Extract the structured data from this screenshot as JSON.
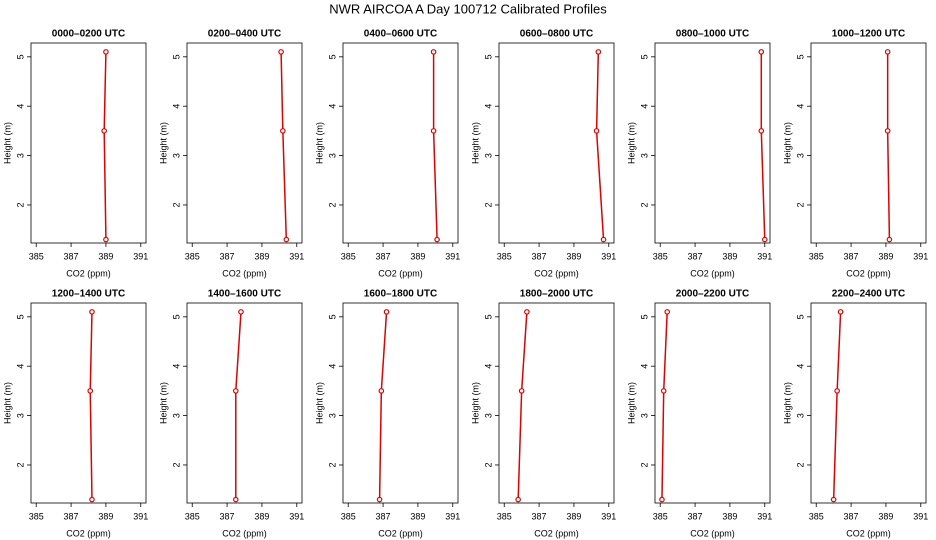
{
  "title": "NWR AIRCOA A  Day 100712  Calibrated Profiles",
  "chart_data": [
    {
      "type": "line",
      "title": "0000–0200 UTC",
      "x_label": "CO2 (ppm)",
      "y_label": "Height (m)",
      "color": "#e00000",
      "x": [
        389.0,
        388.9,
        389.0
      ],
      "values": [
        1.3,
        3.5,
        5.1
      ],
      "xlim": [
        384.7,
        391.3
      ],
      "ylim": [
        1.23,
        5.28
      ],
      "xticks": [
        385,
        387,
        389,
        391
      ],
      "yticks": [
        2,
        3,
        4,
        5
      ]
    },
    {
      "type": "line",
      "title": "0200–0400 UTC",
      "x_label": "CO2 (ppm)",
      "y_label": "Height (m)",
      "color": "#e00000",
      "x": [
        390.4,
        390.2,
        390.1
      ],
      "values": [
        1.3,
        3.5,
        5.1
      ],
      "xlim": [
        384.7,
        391.3
      ],
      "ylim": [
        1.23,
        5.28
      ],
      "xticks": [
        385,
        387,
        389,
        391
      ],
      "yticks": [
        2,
        3,
        4,
        5
      ]
    },
    {
      "type": "line",
      "title": "0400–0600 UTC",
      "x_label": "CO2 (ppm)",
      "y_label": "Height (m)",
      "color": "#e00000",
      "x": [
        390.1,
        389.9,
        389.9
      ],
      "values": [
        1.3,
        3.5,
        5.1
      ],
      "xlim": [
        384.7,
        391.3
      ],
      "ylim": [
        1.23,
        5.28
      ],
      "xticks": [
        385,
        387,
        389,
        391
      ],
      "yticks": [
        2,
        3,
        4,
        5
      ]
    },
    {
      "type": "line",
      "title": "0600–0800 UTC",
      "x_label": "CO2 (ppm)",
      "y_label": "Height (m)",
      "color": "#e00000",
      "x": [
        390.7,
        390.3,
        390.4
      ],
      "values": [
        1.3,
        3.5,
        5.1
      ],
      "xlim": [
        384.7,
        391.3
      ],
      "ylim": [
        1.23,
        5.28
      ],
      "xticks": [
        385,
        387,
        389,
        391
      ],
      "yticks": [
        2,
        3,
        4,
        5
      ]
    },
    {
      "type": "line",
      "title": "0800–1000 UTC",
      "x_label": "CO2 (ppm)",
      "y_label": "Height (m)",
      "color": "#e00000",
      "x": [
        391.0,
        390.8,
        390.8
      ],
      "values": [
        1.3,
        3.5,
        5.1
      ],
      "xlim": [
        384.7,
        391.3
      ],
      "ylim": [
        1.23,
        5.28
      ],
      "xticks": [
        385,
        387,
        389,
        391
      ],
      "yticks": [
        2,
        3,
        4,
        5
      ]
    },
    {
      "type": "line",
      "title": "1000–1200 UTC",
      "x_label": "CO2 (ppm)",
      "y_label": "Height (m)",
      "color": "#e00000",
      "x": [
        389.2,
        389.1,
        389.1
      ],
      "values": [
        1.3,
        3.5,
        5.1
      ],
      "xlim": [
        384.7,
        391.3
      ],
      "ylim": [
        1.23,
        5.28
      ],
      "xticks": [
        385,
        387,
        389,
        391
      ],
      "yticks": [
        2,
        3,
        4,
        5
      ]
    },
    {
      "type": "line",
      "title": "1200–1400 UTC",
      "x_label": "CO2 (ppm)",
      "y_label": "Height (m)",
      "color": "#e00000",
      "x": [
        388.2,
        388.1,
        388.2
      ],
      "values": [
        1.3,
        3.5,
        5.1
      ],
      "xlim": [
        384.7,
        391.3
      ],
      "ylim": [
        1.23,
        5.28
      ],
      "xticks": [
        385,
        387,
        389,
        391
      ],
      "yticks": [
        2,
        3,
        4,
        5
      ]
    },
    {
      "type": "line",
      "title": "1400–1600 UTC",
      "x_label": "CO2 (ppm)",
      "y_label": "Height (m)",
      "color": "#e00000",
      "x": [
        387.5,
        387.5,
        387.8
      ],
      "values": [
        1.3,
        3.5,
        5.1
      ],
      "xlim": [
        384.7,
        391.3
      ],
      "ylim": [
        1.23,
        5.28
      ],
      "xticks": [
        385,
        387,
        389,
        391
      ],
      "yticks": [
        2,
        3,
        4,
        5
      ]
    },
    {
      "type": "line",
      "title": "1600–1800 UTC",
      "x_label": "CO2 (ppm)",
      "y_label": "Height (m)",
      "color": "#e00000",
      "x": [
        386.8,
        386.9,
        387.2
      ],
      "values": [
        1.3,
        3.5,
        5.1
      ],
      "xlim": [
        384.7,
        391.3
      ],
      "ylim": [
        1.23,
        5.28
      ],
      "xticks": [
        385,
        387,
        389,
        391
      ],
      "yticks": [
        2,
        3,
        4,
        5
      ]
    },
    {
      "type": "line",
      "title": "1800–2000 UTC",
      "x_label": "CO2 (ppm)",
      "y_label": "Height (m)",
      "color": "#e00000",
      "x": [
        385.8,
        386.0,
        386.3
      ],
      "values": [
        1.3,
        3.5,
        5.1
      ],
      "xlim": [
        384.7,
        391.3
      ],
      "ylim": [
        1.23,
        5.28
      ],
      "xticks": [
        385,
        387,
        389,
        391
      ],
      "yticks": [
        2,
        3,
        4,
        5
      ]
    },
    {
      "type": "line",
      "title": "2000–2200 UTC",
      "x_label": "CO2 (ppm)",
      "y_label": "Height (m)",
      "color": "#e00000",
      "x": [
        385.1,
        385.2,
        385.4
      ],
      "values": [
        1.3,
        3.5,
        5.1
      ],
      "xlim": [
        384.7,
        391.3
      ],
      "ylim": [
        1.23,
        5.28
      ],
      "xticks": [
        385,
        387,
        389,
        391
      ],
      "yticks": [
        2,
        3,
        4,
        5
      ]
    },
    {
      "type": "line",
      "title": "2200–2400 UTC",
      "x_label": "CO2 (ppm)",
      "y_label": "Height (m)",
      "color": "#e00000",
      "x": [
        386.0,
        386.2,
        386.4
      ],
      "values": [
        1.3,
        3.5,
        5.1
      ],
      "xlim": [
        384.7,
        391.3
      ],
      "ylim": [
        1.23,
        5.28
      ],
      "xticks": [
        385,
        387,
        389,
        391
      ],
      "yticks": [
        2,
        3,
        4,
        5
      ]
    }
  ]
}
